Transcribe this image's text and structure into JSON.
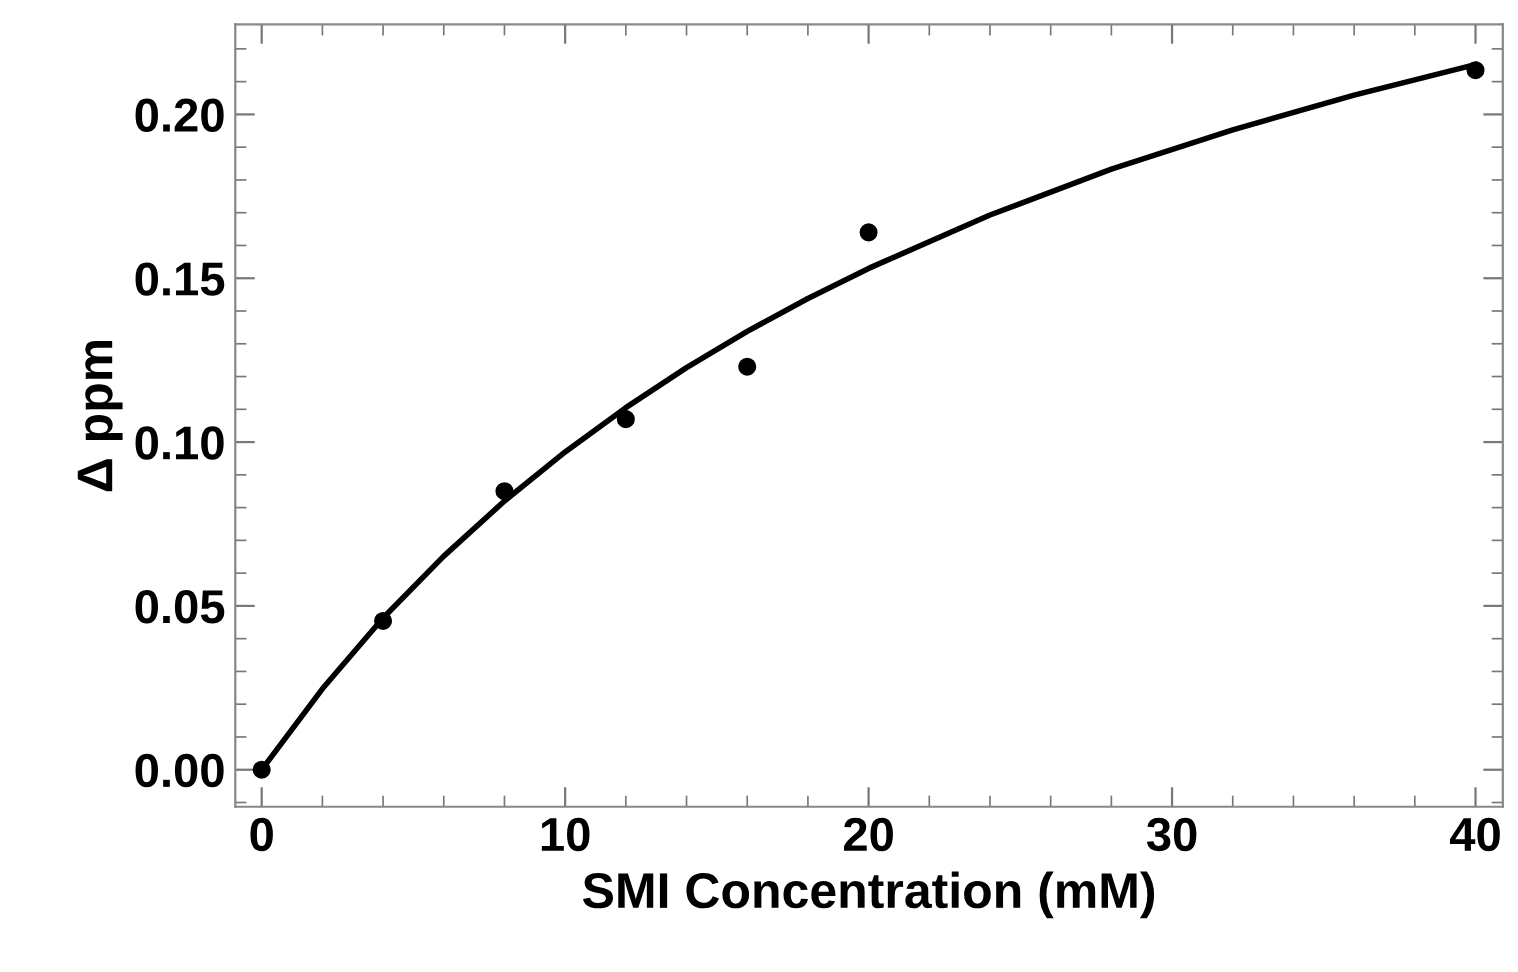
{
  "chart_data": {
    "type": "scatter",
    "xlabel": "SMI Concentration (mM)",
    "ylabel": "Δ ppm",
    "xlim": [
      -0.87,
      40.9
    ],
    "ylim": [
      -0.0113,
      0.2275
    ],
    "xticks": [
      0,
      10,
      20,
      30,
      40
    ],
    "yticks": [
      {
        "value": 0,
        "label": "0.00"
      },
      {
        "value": 0.05,
        "label": "0.05"
      },
      {
        "value": 0.1,
        "label": "0.10"
      },
      {
        "value": 0.15,
        "label": "0.15"
      },
      {
        "value": 0.2,
        "label": "0.20"
      }
    ],
    "grid": false,
    "legend": false,
    "marker": "circle",
    "series": [
      {
        "color": "#000000",
        "x": [
          0,
          4,
          8,
          12,
          16,
          20,
          40
        ],
        "values": [
          0,
          0.0454,
          0.085,
          0.107,
          0.123,
          0.164,
          0.2135
        ]
      },
      {
        "type": "line",
        "color": "#000000",
        "line_style": "solid",
        "marker": "none",
        "x": [
          0,
          2,
          4,
          6,
          8,
          10,
          12,
          14,
          16,
          18,
          20,
          24,
          28,
          32,
          36,
          40
        ],
        "values": [
          0,
          0.0247,
          0.0463,
          0.0652,
          0.082,
          0.097,
          0.1105,
          0.1227,
          0.1338,
          0.1438,
          0.153,
          0.1693,
          0.1833,
          0.1953,
          0.2059,
          0.2152
        ]
      }
    ]
  }
}
